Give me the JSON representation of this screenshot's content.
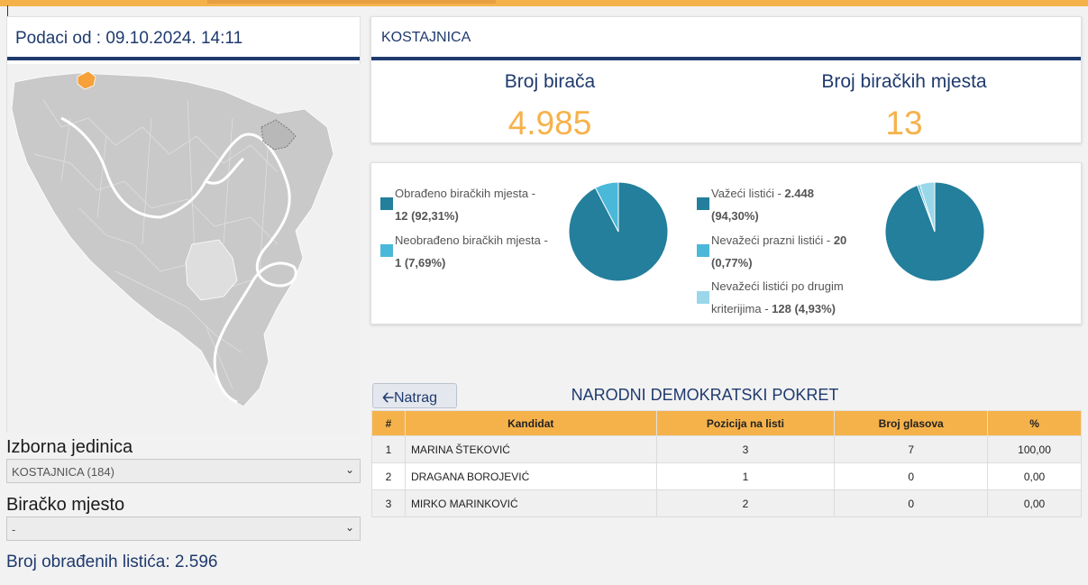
{
  "left": {
    "header": "Podaci od : 09.10.2024. 14:11",
    "zoom_in": "+",
    "zoom_out": "-",
    "district_label": "Izborna jedinica",
    "district_value": "KOSTAJNICA (184)",
    "station_label": "Biračko mjesto",
    "station_value": "-",
    "processed_text": "Broj obrađenih listića: 2.596"
  },
  "stats": {
    "title": "KOSTAJNICA",
    "voters_label": "Broj birača",
    "voters_value": "4.985",
    "stations_label": "Broj biračkih mjesta",
    "stations_value": "13"
  },
  "pies": {
    "processed": {
      "items": [
        {
          "line1": "Obrađeno biračkih mjesta -",
          "line2": "12 (92,31%)",
          "color": "#237f9c",
          "percent": 92.31
        },
        {
          "line1": "Neobrađeno biračkih mjesta -",
          "line2": "1 (7,69%)",
          "color": "#4ab8d8",
          "percent": 7.69
        }
      ]
    },
    "ballots": {
      "items": [
        {
          "line1_pre": "Važeći listići - ",
          "line1_bold": "2.448",
          "line2": "(94,30%)",
          "color": "#237f9c",
          "percent": 94.3
        },
        {
          "line1_pre": "Nevažeći prazni listići - ",
          "line1_bold": "20",
          "line2": "(0,77%)",
          "color": "#4ab8d8",
          "percent": 0.77
        },
        {
          "line1_pre": "Nevažeći listići po drugim",
          "line1_bold": "",
          "line2_pre": "kriterijima - ",
          "line2": "128 (4,93%)",
          "color": "#9ad7ea",
          "percent": 4.93
        }
      ]
    }
  },
  "results": {
    "back_label": "Natrag",
    "party": "NARODNI DEMOKRATSKI POKRET",
    "headers": [
      "#",
      "Kandidat",
      "Pozicija na listi",
      "Broj glasova",
      "%"
    ],
    "rows": [
      [
        "1",
        "MARINA ŠTEKOVIĆ",
        "3",
        "7",
        "100,00"
      ],
      [
        "2",
        "DRAGANA BOROJEVIĆ",
        "1",
        "0",
        "0,00"
      ],
      [
        "3",
        "MIRKO MARINKOVIĆ",
        "2",
        "0",
        "0,00"
      ]
    ]
  },
  "colors": {
    "accent": "#f6b24a",
    "navy": "#1f3a6e",
    "pie_dark": "#237f9c",
    "pie_light": "#4ab8d8",
    "pie_pale": "#9ad7ea"
  }
}
